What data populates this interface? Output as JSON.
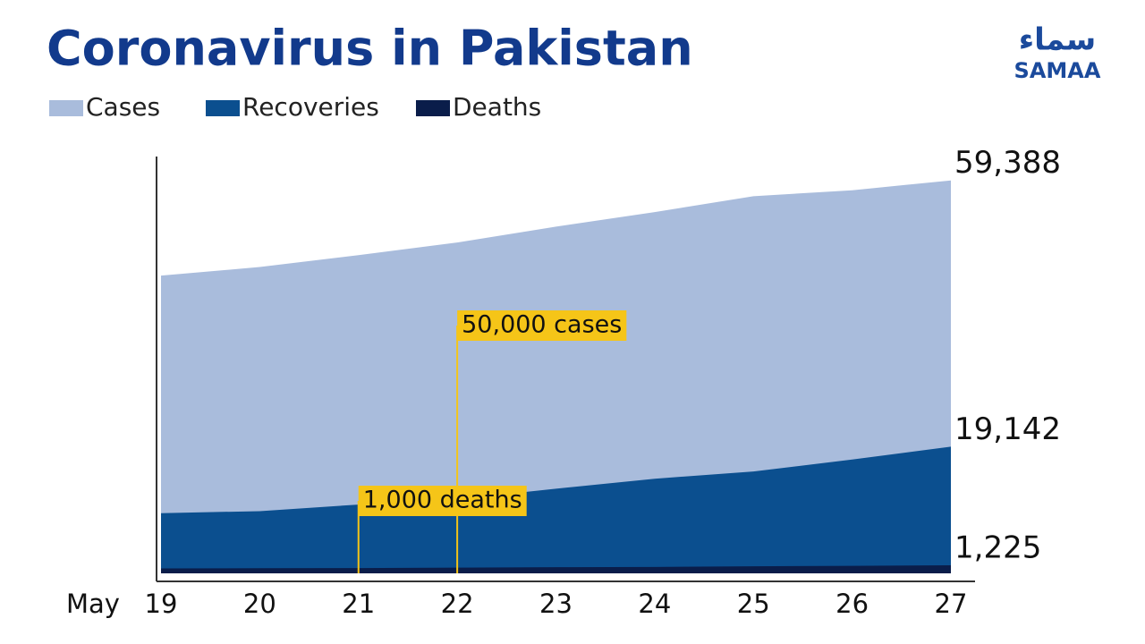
{
  "chart_data": {
    "type": "area",
    "title": "Coronavirus in Pakistan",
    "logo": {
      "urdu": "سماء",
      "text": "SAMAA"
    },
    "x_label": "May",
    "categories": [
      "19",
      "20",
      "21",
      "22",
      "23",
      "24",
      "25",
      "26",
      "27"
    ],
    "series": [
      {
        "name": "Cases",
        "color": "#a9bcdc",
        "values": [
          45000,
          46300,
          48100,
          50000,
          52400,
          54600,
          57000,
          57900,
          59388
        ],
        "value_labels": [
          null,
          null,
          null,
          null,
          null,
          null,
          null,
          null,
          "59,388"
        ]
      },
      {
        "name": "Recoveries",
        "color": "#0b4f8f",
        "values": [
          9100,
          9400,
          10400,
          11200,
          12800,
          14300,
          15400,
          17200,
          19142
        ],
        "value_labels": [
          null,
          null,
          null,
          null,
          null,
          null,
          null,
          null,
          "19,142"
        ]
      },
      {
        "name": "Deaths",
        "color": "#0a1d4a",
        "values": [
          740,
          780,
          800,
          870,
          930,
          970,
          1060,
          1140,
          1225
        ],
        "value_labels": [
          null,
          null,
          null,
          null,
          null,
          null,
          null,
          null,
          "1,225"
        ]
      }
    ],
    "annotations": [
      {
        "text": "50,000 cases",
        "x": "22"
      },
      {
        "text": "1,000 deaths",
        "x": "21"
      }
    ],
    "ylim": [
      0,
      63000
    ],
    "legend": "top-left"
  }
}
